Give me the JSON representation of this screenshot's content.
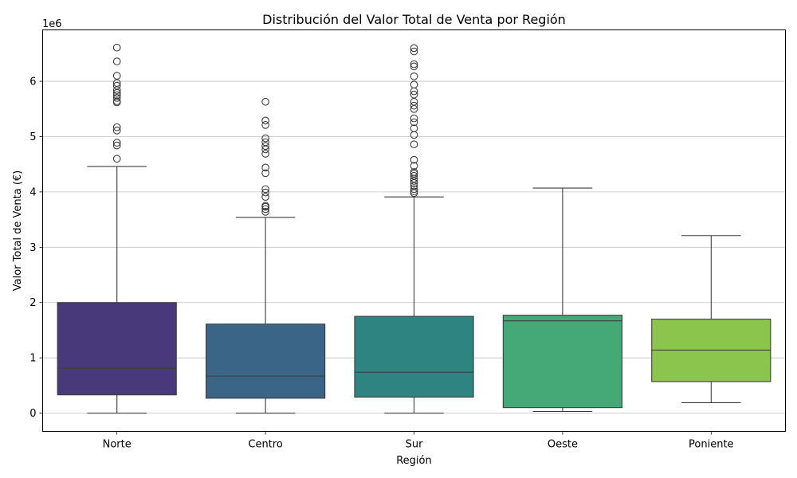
{
  "chart_data": {
    "type": "box",
    "title": "Distribución del Valor Total de Venta por Región",
    "xlabel": "Región",
    "ylabel": "Valor Total de Venta (€)",
    "y_offset_text": "1e6",
    "y_scale": 1000000,
    "ylim": [
      -330000,
      6930000
    ],
    "yticks": [
      0,
      1000000,
      2000000,
      3000000,
      4000000,
      5000000,
      6000000
    ],
    "ytick_labels": [
      "0",
      "1",
      "2",
      "3",
      "4",
      "5",
      "6"
    ],
    "grid": "y",
    "categories": [
      "Norte",
      "Centro",
      "Sur",
      "Oeste",
      "Poniente"
    ],
    "boxes": [
      {
        "label": "Norte",
        "color": "#48397a",
        "whisker_low": 0,
        "q1": 330000,
        "median": 810000,
        "q3": 2000000,
        "whisker_high": 4460000,
        "outliers": [
          4600000,
          4840000,
          4890000,
          5110000,
          5170000,
          5620000,
          5640000,
          5700000,
          5750000,
          5790000,
          5840000,
          5920000,
          5970000,
          6100000,
          6360000,
          6610000
        ]
      },
      {
        "label": "Centro",
        "color": "#3b6587",
        "whisker_low": 0,
        "q1": 270000,
        "median": 670000,
        "q3": 1610000,
        "whisker_high": 3540000,
        "outliers": [
          3640000,
          3690000,
          3730000,
          3750000,
          3910000,
          3990000,
          4050000,
          4340000,
          4440000,
          4690000,
          4770000,
          4830000,
          4900000,
          4970000,
          5210000,
          5290000,
          5630000
        ]
      },
      {
        "label": "Sur",
        "color": "#2e8480",
        "whisker_low": 0,
        "q1": 290000,
        "median": 740000,
        "q3": 1750000,
        "whisker_high": 3910000,
        "outliers": [
          3980000,
          4010000,
          4050000,
          4110000,
          4160000,
          4200000,
          4240000,
          4290000,
          4330000,
          4360000,
          4470000,
          4580000,
          4860000,
          5030000,
          5150000,
          5260000,
          5330000,
          5500000,
          5560000,
          5630000,
          5760000,
          5820000,
          5940000,
          6090000,
          6270000,
          6310000,
          6540000,
          6600000
        ]
      },
      {
        "label": "Oeste",
        "color": "#45a877",
        "whisker_low": 30000,
        "q1": 100000,
        "median": 1670000,
        "q3": 1770000,
        "whisker_high": 4070000,
        "outliers": []
      },
      {
        "label": "Poniente",
        "color": "#8bc54e",
        "whisker_low": 190000,
        "q1": 570000,
        "median": 1140000,
        "q3": 1700000,
        "whisker_high": 3210000,
        "outliers": []
      }
    ]
  }
}
